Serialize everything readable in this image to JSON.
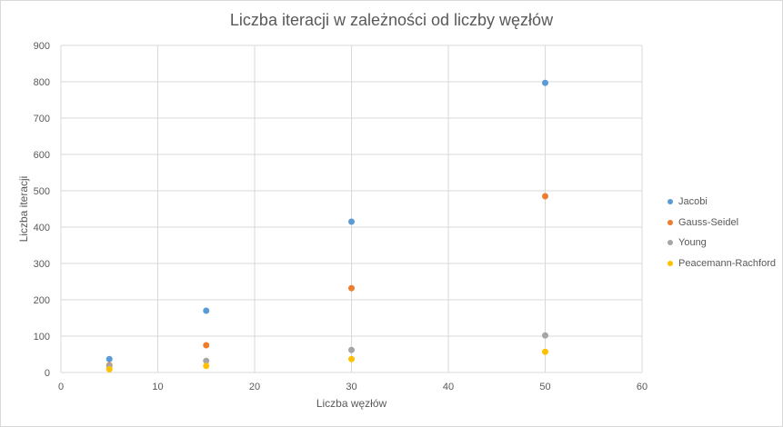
{
  "chart_data": {
    "type": "scatter",
    "title": "Liczba iteracji w zależności od liczby węzłów",
    "xlabel": "Liczba węzłów",
    "ylabel": "Liczba iteracji",
    "xlim": [
      0,
      60
    ],
    "ylim": [
      0,
      900
    ],
    "xticks": [
      0,
      10,
      20,
      30,
      40,
      50,
      60
    ],
    "yticks": [
      0,
      100,
      200,
      300,
      400,
      500,
      600,
      700,
      800,
      900
    ],
    "grid": true,
    "legend_position": "right",
    "x": [
      5,
      15,
      30,
      50
    ],
    "series": [
      {
        "name": "Jacobi",
        "color": "#5b9bd5",
        "values": [
          37,
          170,
          415,
          797
        ]
      },
      {
        "name": "Gauss-Seidel",
        "color": "#ed7d31",
        "values": [
          20,
          75,
          232,
          485
        ]
      },
      {
        "name": "Young",
        "color": "#a5a5a5",
        "values": [
          18,
          32,
          62,
          102
        ]
      },
      {
        "name": "Peacemann-Rachford",
        "color": "#ffc000",
        "values": [
          9,
          18,
          37,
          57
        ]
      }
    ]
  }
}
